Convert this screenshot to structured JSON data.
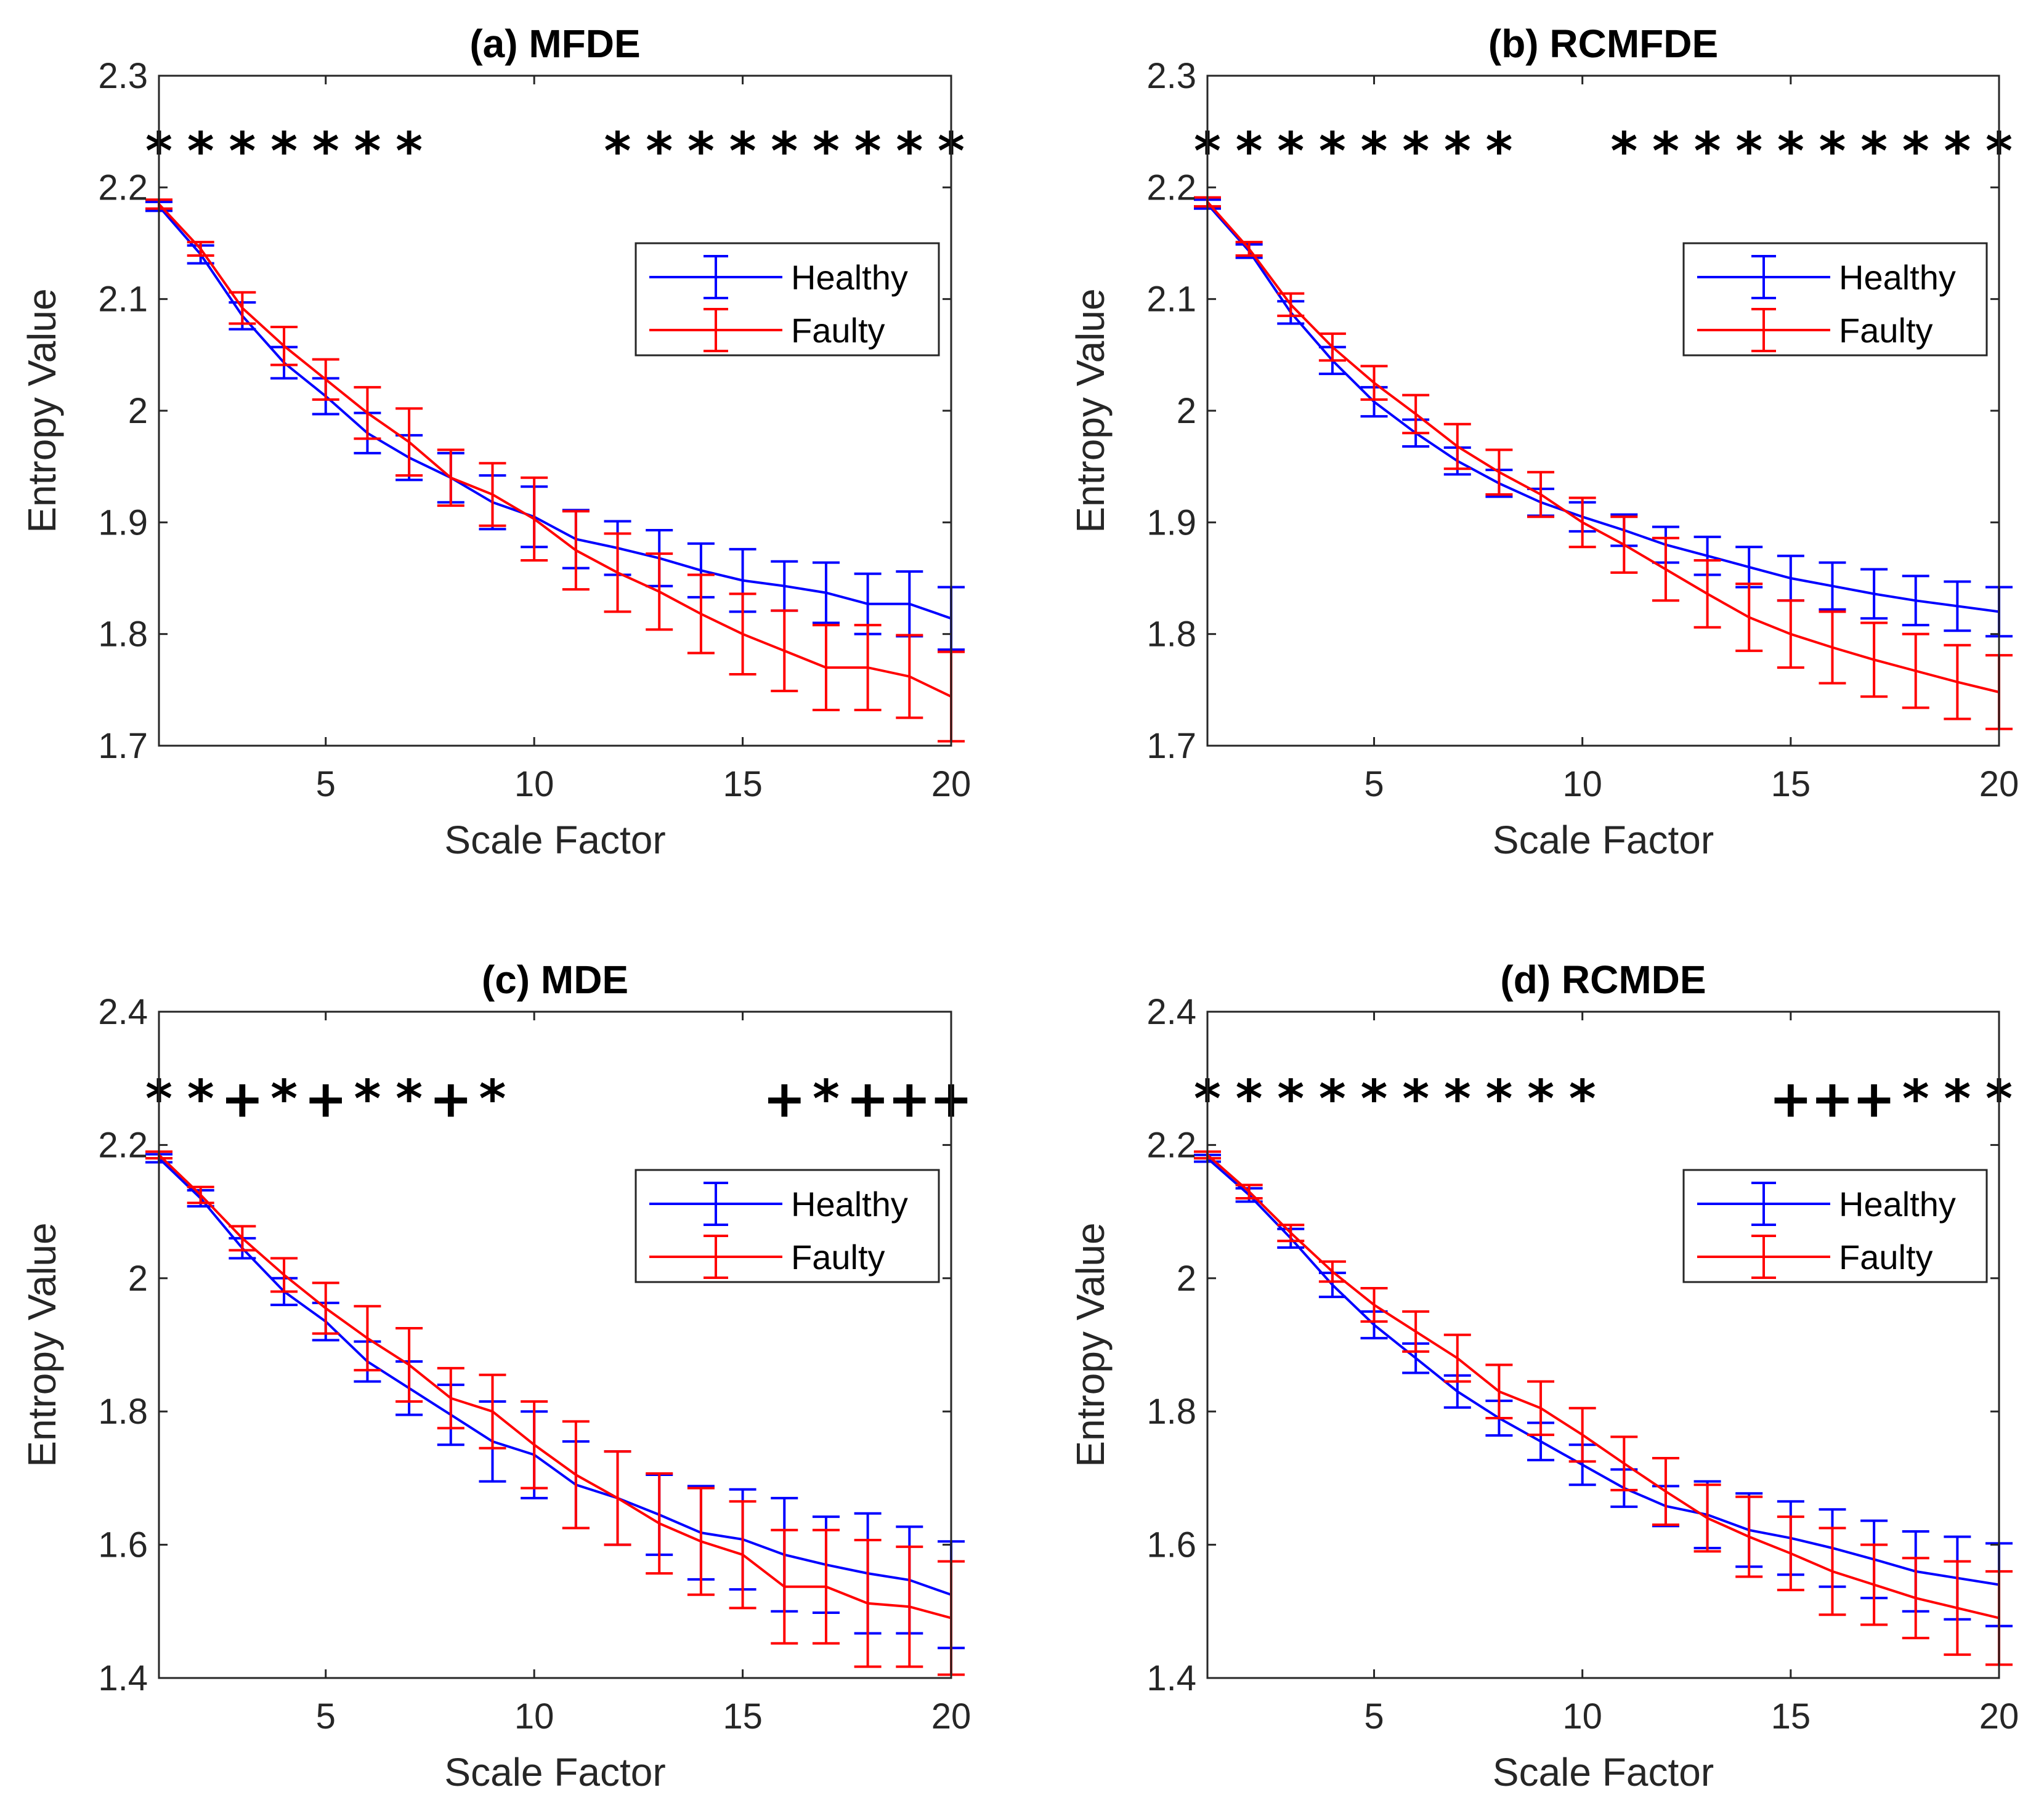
{
  "chart_data": [
    {
      "type": "line",
      "title": "(a) MFDE",
      "xlabel": "Scale Factor",
      "ylabel": "Entropy Value",
      "xlim": [
        1,
        20
      ],
      "ylim": [
        1.7,
        2.3
      ],
      "xticks": [
        5,
        10,
        15,
        20
      ],
      "yticks": [
        "1.7",
        "1.8",
        "1.9",
        "2",
        "2.1",
        "2.2",
        "2.3"
      ],
      "x": [
        1,
        2,
        3,
        4,
        5,
        6,
        7,
        8,
        9,
        10,
        11,
        12,
        13,
        14,
        15,
        16,
        17,
        18,
        19,
        20
      ],
      "series": [
        {
          "name": "Healthy",
          "color": "#0000ff",
          "values": [
            2.183,
            2.14,
            2.085,
            2.043,
            2.013,
            1.98,
            1.958,
            1.94,
            1.918,
            1.905,
            1.885,
            1.877,
            1.868,
            1.857,
            1.848,
            1.843,
            1.837,
            1.827,
            1.827,
            1.814
          ],
          "errors": [
            0.004,
            0.008,
            0.012,
            0.014,
            0.016,
            0.018,
            0.02,
            0.022,
            0.024,
            0.027,
            0.026,
            0.024,
            0.025,
            0.024,
            0.028,
            0.022,
            0.027,
            0.027,
            0.029,
            0.028
          ]
        },
        {
          "name": "Faulty",
          "color": "#ff0000",
          "values": [
            2.185,
            2.145,
            2.092,
            2.058,
            2.028,
            1.998,
            1.972,
            1.94,
            1.925,
            1.903,
            1.875,
            1.855,
            1.838,
            1.818,
            1.8,
            1.785,
            1.77,
            1.77,
            1.762,
            1.744
          ],
          "errors": [
            0.004,
            0.006,
            0.014,
            0.017,
            0.018,
            0.023,
            0.03,
            0.025,
            0.028,
            0.037,
            0.035,
            0.035,
            0.034,
            0.035,
            0.036,
            0.036,
            0.038,
            0.038,
            0.037,
            0.04
          ]
        }
      ],
      "legend": {
        "location": "upper-right",
        "entries": [
          "Healthy",
          "Faulty"
        ]
      },
      "significance": {
        "y": 2.233,
        "markers": [
          {
            "x": 1,
            "symbol": "*"
          },
          {
            "x": 2,
            "symbol": "*"
          },
          {
            "x": 3,
            "symbol": "*"
          },
          {
            "x": 4,
            "symbol": "*"
          },
          {
            "x": 5,
            "symbol": "*"
          },
          {
            "x": 6,
            "symbol": "*"
          },
          {
            "x": 7,
            "symbol": "*"
          },
          {
            "x": 12,
            "symbol": "*"
          },
          {
            "x": 13,
            "symbol": "*"
          },
          {
            "x": 14,
            "symbol": "*"
          },
          {
            "x": 15,
            "symbol": "*"
          },
          {
            "x": 16,
            "symbol": "*"
          },
          {
            "x": 17,
            "symbol": "*"
          },
          {
            "x": 18,
            "symbol": "*"
          },
          {
            "x": 19,
            "symbol": "*"
          },
          {
            "x": 20,
            "symbol": "*"
          }
        ]
      }
    },
    {
      "type": "line",
      "title": "(b) RCMFDE",
      "xlabel": "Scale Factor",
      "ylabel": "Entropy Value",
      "xlim": [
        1,
        20
      ],
      "ylim": [
        1.7,
        2.3
      ],
      "xticks": [
        5,
        10,
        15,
        20
      ],
      "yticks": [
        "1.7",
        "1.8",
        "1.9",
        "2",
        "2.1",
        "2.2",
        "2.3"
      ],
      "x": [
        1,
        2,
        3,
        4,
        5,
        6,
        7,
        8,
        9,
        10,
        11,
        12,
        13,
        14,
        15,
        16,
        17,
        18,
        19,
        20
      ],
      "series": [
        {
          "name": "Healthy",
          "color": "#0000ff",
          "values": [
            2.185,
            2.143,
            2.088,
            2.045,
            2.008,
            1.98,
            1.955,
            1.935,
            1.918,
            1.905,
            1.893,
            1.88,
            1.87,
            1.86,
            1.85,
            1.843,
            1.836,
            1.83,
            1.825,
            1.82
          ],
          "errors": [
            0.004,
            0.006,
            0.01,
            0.012,
            0.013,
            0.012,
            0.012,
            0.012,
            0.012,
            0.013,
            0.014,
            0.016,
            0.017,
            0.018,
            0.02,
            0.021,
            0.022,
            0.022,
            0.022,
            0.022
          ]
        },
        {
          "name": "Faulty",
          "color": "#ff0000",
          "values": [
            2.187,
            2.145,
            2.095,
            2.057,
            2.025,
            1.997,
            1.968,
            1.945,
            1.925,
            1.9,
            1.88,
            1.858,
            1.836,
            1.815,
            1.8,
            1.788,
            1.777,
            1.767,
            1.757,
            1.748
          ],
          "errors": [
            0.004,
            0.006,
            0.01,
            0.012,
            0.015,
            0.017,
            0.02,
            0.02,
            0.02,
            0.022,
            0.025,
            0.028,
            0.03,
            0.03,
            0.03,
            0.032,
            0.033,
            0.033,
            0.033,
            0.033
          ]
        }
      ],
      "legend": {
        "location": "upper-right",
        "entries": [
          "Healthy",
          "Faulty"
        ]
      },
      "significance": {
        "y": 2.233,
        "markers": [
          {
            "x": 1,
            "symbol": "*"
          },
          {
            "x": 2,
            "symbol": "*"
          },
          {
            "x": 3,
            "symbol": "*"
          },
          {
            "x": 4,
            "symbol": "*"
          },
          {
            "x": 5,
            "symbol": "*"
          },
          {
            "x": 6,
            "symbol": "*"
          },
          {
            "x": 7,
            "symbol": "*"
          },
          {
            "x": 8,
            "symbol": "*"
          },
          {
            "x": 11,
            "symbol": "*"
          },
          {
            "x": 12,
            "symbol": "*"
          },
          {
            "x": 13,
            "symbol": "*"
          },
          {
            "x": 14,
            "symbol": "*"
          },
          {
            "x": 15,
            "symbol": "*"
          },
          {
            "x": 16,
            "symbol": "*"
          },
          {
            "x": 17,
            "symbol": "*"
          },
          {
            "x": 18,
            "symbol": "*"
          },
          {
            "x": 19,
            "symbol": "*"
          },
          {
            "x": 20,
            "symbol": "*"
          }
        ]
      }
    },
    {
      "type": "line",
      "title": "(c) MDE",
      "xlabel": "Scale Factor",
      "ylabel": "Entropy Value",
      "xlim": [
        1,
        20
      ],
      "ylim": [
        1.4,
        2.4
      ],
      "xticks": [
        5,
        10,
        15,
        20
      ],
      "yticks": [
        "1.4",
        "1.6",
        "1.8",
        "2",
        "2.2",
        "2.4"
      ],
      "x": [
        1,
        2,
        3,
        4,
        5,
        6,
        7,
        8,
        9,
        10,
        11,
        12,
        13,
        14,
        15,
        16,
        17,
        18,
        19,
        20
      ],
      "series": [
        {
          "name": "Healthy",
          "color": "#0000ff",
          "values": [
            2.18,
            2.12,
            2.045,
            1.98,
            1.935,
            1.875,
            1.835,
            1.795,
            1.755,
            1.735,
            1.69,
            1.67,
            1.645,
            1.618,
            1.608,
            1.585,
            1.57,
            1.557,
            1.547,
            1.525
          ],
          "errors": [
            0.006,
            0.012,
            0.015,
            0.02,
            0.028,
            0.03,
            0.04,
            0.045,
            0.06,
            0.065,
            0.065,
            0.07,
            0.06,
            0.07,
            0.075,
            0.085,
            0.072,
            0.09,
            0.08,
            0.08
          ]
        },
        {
          "name": "Faulty",
          "color": "#ff0000",
          "values": [
            2.185,
            2.125,
            2.06,
            2.005,
            1.955,
            1.91,
            1.87,
            1.82,
            1.8,
            1.75,
            1.705,
            1.67,
            1.632,
            1.605,
            1.585,
            1.537,
            1.537,
            1.512,
            1.507,
            1.49
          ],
          "errors": [
            0.005,
            0.012,
            0.018,
            0.025,
            0.038,
            0.048,
            0.055,
            0.045,
            0.055,
            0.065,
            0.08,
            0.07,
            0.075,
            0.08,
            0.08,
            0.085,
            0.085,
            0.095,
            0.09,
            0.085
          ]
        }
      ],
      "legend": {
        "location": "upper-right",
        "entries": [
          "Healthy",
          "Faulty"
        ]
      },
      "significance": {
        "y": 2.27,
        "markers": [
          {
            "x": 1,
            "symbol": "*"
          },
          {
            "x": 2,
            "symbol": "*"
          },
          {
            "x": 3,
            "symbol": "+"
          },
          {
            "x": 4,
            "symbol": "*"
          },
          {
            "x": 5,
            "symbol": "+"
          },
          {
            "x": 6,
            "symbol": "*"
          },
          {
            "x": 7,
            "symbol": "*"
          },
          {
            "x": 8,
            "symbol": "+"
          },
          {
            "x": 9,
            "symbol": "*"
          },
          {
            "x": 16,
            "symbol": "+"
          },
          {
            "x": 17,
            "symbol": "*"
          },
          {
            "x": 18,
            "symbol": "+"
          },
          {
            "x": 19,
            "symbol": "+"
          },
          {
            "x": 20,
            "symbol": "+"
          }
        ]
      }
    },
    {
      "type": "line",
      "title": "(d) RCMDE",
      "xlabel": "Scale Factor",
      "ylabel": "Entropy Value",
      "xlim": [
        1,
        20
      ],
      "ylim": [
        1.4,
        2.4
      ],
      "xticks": [
        5,
        10,
        15,
        20
      ],
      "yticks": [
        "1.4",
        "1.6",
        "1.8",
        "2",
        "2.2",
        "2.4"
      ],
      "x": [
        1,
        2,
        3,
        4,
        5,
        6,
        7,
        8,
        9,
        10,
        11,
        12,
        13,
        14,
        15,
        16,
        17,
        18,
        19,
        20
      ],
      "series": [
        {
          "name": "Healthy",
          "color": "#0000ff",
          "values": [
            2.18,
            2.125,
            2.06,
            1.99,
            1.93,
            1.88,
            1.83,
            1.79,
            1.755,
            1.72,
            1.685,
            1.658,
            1.645,
            1.622,
            1.61,
            1.595,
            1.578,
            1.56,
            1.55,
            1.54
          ],
          "errors": [
            0.005,
            0.01,
            0.014,
            0.018,
            0.02,
            0.022,
            0.024,
            0.026,
            0.028,
            0.03,
            0.028,
            0.03,
            0.05,
            0.055,
            0.055,
            0.058,
            0.058,
            0.06,
            0.062,
            0.062
          ]
        },
        {
          "name": "Faulty",
          "color": "#ff0000",
          "values": [
            2.185,
            2.13,
            2.068,
            2.01,
            1.96,
            1.92,
            1.88,
            1.83,
            1.805,
            1.765,
            1.722,
            1.68,
            1.64,
            1.612,
            1.587,
            1.56,
            1.54,
            1.52,
            1.505,
            1.49
          ],
          "errors": [
            0.005,
            0.01,
            0.012,
            0.015,
            0.025,
            0.03,
            0.035,
            0.04,
            0.04,
            0.04,
            0.04,
            0.05,
            0.05,
            0.06,
            0.055,
            0.065,
            0.06,
            0.06,
            0.07,
            0.07
          ]
        }
      ],
      "legend": {
        "location": "upper-right",
        "entries": [
          "Healthy",
          "Faulty"
        ]
      },
      "significance": {
        "y": 2.27,
        "markers": [
          {
            "x": 1,
            "symbol": "*"
          },
          {
            "x": 2,
            "symbol": "*"
          },
          {
            "x": 3,
            "symbol": "*"
          },
          {
            "x": 4,
            "symbol": "*"
          },
          {
            "x": 5,
            "symbol": "*"
          },
          {
            "x": 6,
            "symbol": "*"
          },
          {
            "x": 7,
            "symbol": "*"
          },
          {
            "x": 8,
            "symbol": "*"
          },
          {
            "x": 9,
            "symbol": "*"
          },
          {
            "x": 10,
            "symbol": "*"
          },
          {
            "x": 15,
            "symbol": "+"
          },
          {
            "x": 16,
            "symbol": "+"
          },
          {
            "x": 17,
            "symbol": "+"
          },
          {
            "x": 18,
            "symbol": "*"
          },
          {
            "x": 19,
            "symbol": "*"
          },
          {
            "x": 20,
            "symbol": "*"
          }
        ]
      }
    }
  ]
}
